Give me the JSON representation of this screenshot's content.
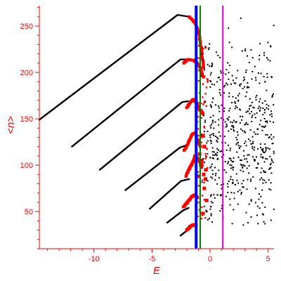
{
  "chart_data": {
    "type": "scatter",
    "title": "",
    "xlabel": "E",
    "ylabel": "<n>",
    "xlim": [
      -14.7,
      5.5
    ],
    "ylim": [
      10,
      272
    ],
    "x_ticks": [
      -10,
      -5,
      0,
      5
    ],
    "y_ticks": [
      50,
      100,
      150,
      200,
      250
    ],
    "grid": false,
    "legend": "none",
    "colors": {
      "axes": "#ff0000",
      "black_points": "#000000",
      "red_points": "#ff0000",
      "line_blue": "#0000ff",
      "line_green": "#008000",
      "line_magenta": "#cc00cc"
    },
    "vertical_lines": [
      {
        "x": -1.2,
        "color": "#0000ff"
      },
      {
        "x": -0.85,
        "color": "#008000"
      },
      {
        "x": 1.1,
        "color": "#cc00cc"
      }
    ],
    "black_branches": [
      {
        "points": [
          [
            -14.7,
            149
          ],
          [
            -2.8,
            262
          ],
          [
            -1.8,
            260
          ]
        ]
      },
      {
        "points": [
          [
            -11.9,
            120
          ],
          [
            -2.55,
            214
          ],
          [
            -1.9,
            214
          ]
        ]
      },
      {
        "points": [
          [
            -9.5,
            95
          ],
          [
            -2.4,
            168
          ],
          [
            -1.9,
            169
          ]
        ]
      },
      {
        "points": [
          [
            -7.3,
            73
          ],
          [
            -2.6,
            119
          ],
          [
            -1.9,
            122
          ]
        ]
      },
      {
        "points": [
          [
            -5.2,
            53
          ],
          [
            -2.5,
            83
          ],
          [
            -1.8,
            85
          ]
        ]
      },
      {
        "points": [
          [
            -3.7,
            38
          ],
          [
            -2.35,
            51
          ],
          [
            -1.85,
            54
          ]
        ]
      },
      {
        "points": [
          [
            -2.55,
            24
          ],
          [
            -1.95,
            30
          ],
          [
            -1.7,
            32
          ]
        ]
      }
    ],
    "red_branches": [
      {
        "points": [
          [
            -1.8,
            260
          ],
          [
            -1.35,
            254
          ],
          [
            -1.0,
            245
          ],
          [
            -0.75,
            225
          ],
          [
            -0.55,
            205
          ]
        ]
      },
      {
        "points": [
          [
            -2.3,
            210
          ],
          [
            -1.9,
            214
          ],
          [
            -1.4,
            213
          ],
          [
            -1.1,
            210
          ],
          [
            -0.85,
            205
          ],
          [
            -0.6,
            195
          ]
        ]
      },
      {
        "points": [
          [
            -2.0,
            162
          ],
          [
            -1.7,
            168
          ],
          [
            -1.45,
            171
          ],
          [
            -1.2,
            168
          ],
          [
            -0.9,
            160
          ],
          [
            -0.6,
            155
          ]
        ]
      },
      {
        "points": [
          [
            -2.2,
            116
          ],
          [
            -1.85,
            125
          ],
          [
            -1.55,
            133
          ],
          [
            -1.3,
            135
          ],
          [
            -1.1,
            128
          ],
          [
            -0.8,
            120
          ]
        ]
      },
      {
        "points": [
          [
            -2.1,
            88
          ],
          [
            -1.8,
            96
          ],
          [
            -1.5,
            103
          ],
          [
            -1.3,
            110
          ],
          [
            -1.1,
            108
          ],
          [
            -0.8,
            102
          ]
        ]
      },
      {
        "points": [
          [
            -2.3,
            55
          ],
          [
            -1.95,
            60
          ],
          [
            -1.6,
            66
          ],
          [
            -1.35,
            68
          ],
          [
            -1.1,
            65
          ]
        ]
      },
      {
        "points": [
          [
            -2.0,
            30
          ],
          [
            -1.7,
            34
          ],
          [
            -1.4,
            36
          ],
          [
            -1.2,
            35
          ]
        ]
      }
    ],
    "red_squares": [
      [
        -0.9,
        112
      ],
      [
        -0.7,
        105
      ],
      [
        -0.75,
        98
      ],
      [
        -0.55,
        90
      ],
      [
        -0.5,
        75
      ],
      [
        -0.6,
        48
      ],
      [
        -0.4,
        85
      ],
      [
        -0.65,
        132
      ],
      [
        -0.3,
        62
      ],
      [
        -0.5,
        120
      ],
      [
        -0.8,
        100
      ],
      [
        -0.35,
        95
      ],
      [
        -0.95,
        88
      ]
    ],
    "black_cloud": {
      "x_range": [
        0.0,
        5.5
      ],
      "y_range": [
        35,
        270
      ],
      "center": [
        2.8,
        128
      ],
      "density": "dense"
    }
  }
}
